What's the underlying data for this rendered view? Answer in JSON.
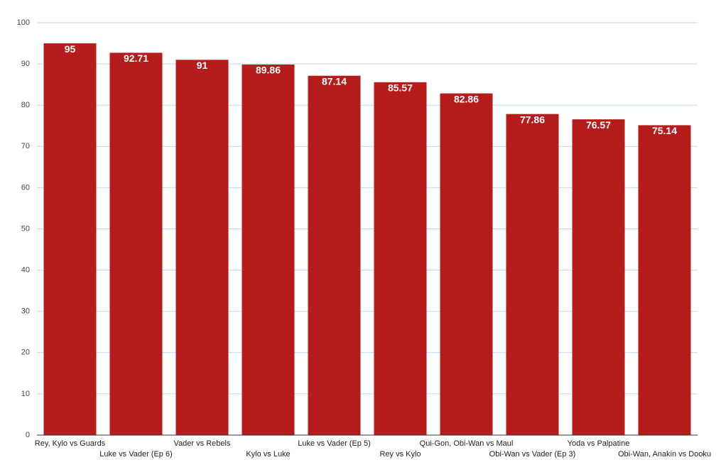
{
  "chart_data": {
    "type": "bar",
    "categories": [
      "Rey, Kylo vs Guards",
      "Luke vs Vader (Ep 6)",
      "Vader vs Rebels",
      "Kylo vs Luke",
      "Luke vs Vader (Ep 5)",
      "Rey vs Kylo",
      "Qui-Gon, Obi-Wan vs Maul",
      "Obi-Wan vs Vader (Ep 3)",
      "Yoda vs Palpatine",
      "Obi-Wan, Anakin vs Dooku"
    ],
    "values": [
      95,
      92.71,
      91,
      89.86,
      87.14,
      85.57,
      82.86,
      77.86,
      76.57,
      75.14
    ],
    "color": "#b71c1c",
    "ylim": [
      0,
      100
    ],
    "yticks": [
      0,
      10,
      20,
      30,
      40,
      50,
      60,
      70,
      80,
      90,
      100
    ],
    "grid": true
  }
}
